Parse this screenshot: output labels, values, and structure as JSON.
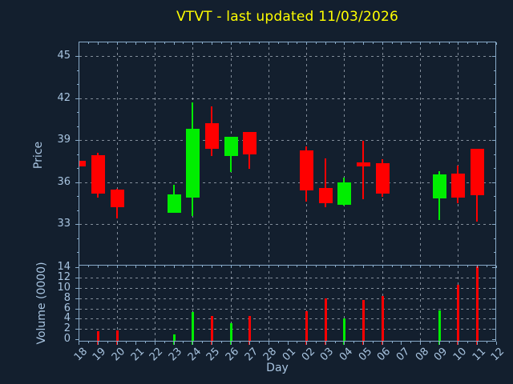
{
  "chart_data": {
    "type": "candlestick",
    "title": "VTVT - last updated 11/03/2026",
    "price_axis": {
      "label": "Price",
      "ticks": [
        33,
        36,
        39,
        42,
        45
      ],
      "range": [
        30.1,
        46.0
      ],
      "minor_tick_step": 1
    },
    "volume_axis": {
      "label": "Volume (0000)",
      "ticks": [
        0,
        2,
        4,
        6,
        8,
        10,
        12,
        14
      ],
      "range": [
        0,
        14.7
      ]
    },
    "x_axis": {
      "label": "Day",
      "categories": [
        "18",
        "19",
        "20",
        "21",
        "22",
        "23",
        "24",
        "25",
        "26",
        "27",
        "28",
        "01",
        "02",
        "03",
        "04",
        "05",
        "06",
        "07",
        "08",
        "09",
        "10",
        "11",
        "12"
      ],
      "gridline_every": 2
    },
    "grid": true,
    "legend": false,
    "candles": [
      {
        "day": "18",
        "open": 37.5,
        "high": 37.5,
        "low": 37.1,
        "close": 37.1,
        "volume": 0
      },
      {
        "day": "19",
        "open": 37.9,
        "high": 38.1,
        "low": 34.9,
        "close": 35.2,
        "volume": 1.6
      },
      {
        "day": "20",
        "open": 35.45,
        "high": 35.5,
        "low": 33.4,
        "close": 34.2,
        "volume": 1.75
      },
      {
        "day": "23",
        "open": 33.8,
        "high": 35.8,
        "low": 33.8,
        "close": 35.1,
        "volume": 1.0
      },
      {
        "day": "24",
        "open": 34.9,
        "high": 41.7,
        "low": 33.55,
        "close": 39.8,
        "volume": 5.3
      },
      {
        "day": "25",
        "open": 40.2,
        "high": 41.4,
        "low": 37.85,
        "close": 38.4,
        "volume": 4.6
      },
      {
        "day": "26",
        "open": 37.85,
        "high": 39.25,
        "low": 36.7,
        "close": 39.25,
        "volume": 3.2
      },
      {
        "day": "27",
        "open": 39.55,
        "high": 39.55,
        "low": 36.95,
        "close": 38.0,
        "volume": 4.5
      },
      {
        "day": "02",
        "open": 38.25,
        "high": 38.55,
        "low": 34.6,
        "close": 35.4,
        "volume": 5.4
      },
      {
        "day": "03",
        "open": 35.55,
        "high": 37.7,
        "low": 34.2,
        "close": 34.5,
        "volume": 8.0
      },
      {
        "day": "04",
        "open": 34.4,
        "high": 36.3,
        "low": 34.3,
        "close": 36.0,
        "volume": 4.1
      },
      {
        "day": "05",
        "open": 37.4,
        "high": 38.95,
        "low": 34.8,
        "close": 37.1,
        "volume": 7.6
      },
      {
        "day": "06",
        "open": 37.35,
        "high": 37.65,
        "low": 34.95,
        "close": 35.2,
        "volume": 8.5
      },
      {
        "day": "09",
        "open": 34.85,
        "high": 36.75,
        "low": 33.3,
        "close": 36.55,
        "volume": 5.6
      },
      {
        "day": "10",
        "open": 36.6,
        "high": 37.2,
        "low": 34.5,
        "close": 34.9,
        "volume": 10.6
      },
      {
        "day": "11",
        "open": 38.4,
        "high": 38.4,
        "low": 33.2,
        "close": 35.05,
        "volume": 14.2
      }
    ],
    "colors": {
      "up": "#00ee00",
      "down": "#ff0000",
      "background": "#131f2e",
      "text": "#a8c4e0",
      "title": "#ffff00",
      "spine": "#88aac8",
      "grid": "rgba(205,214,226,0.6)"
    }
  }
}
